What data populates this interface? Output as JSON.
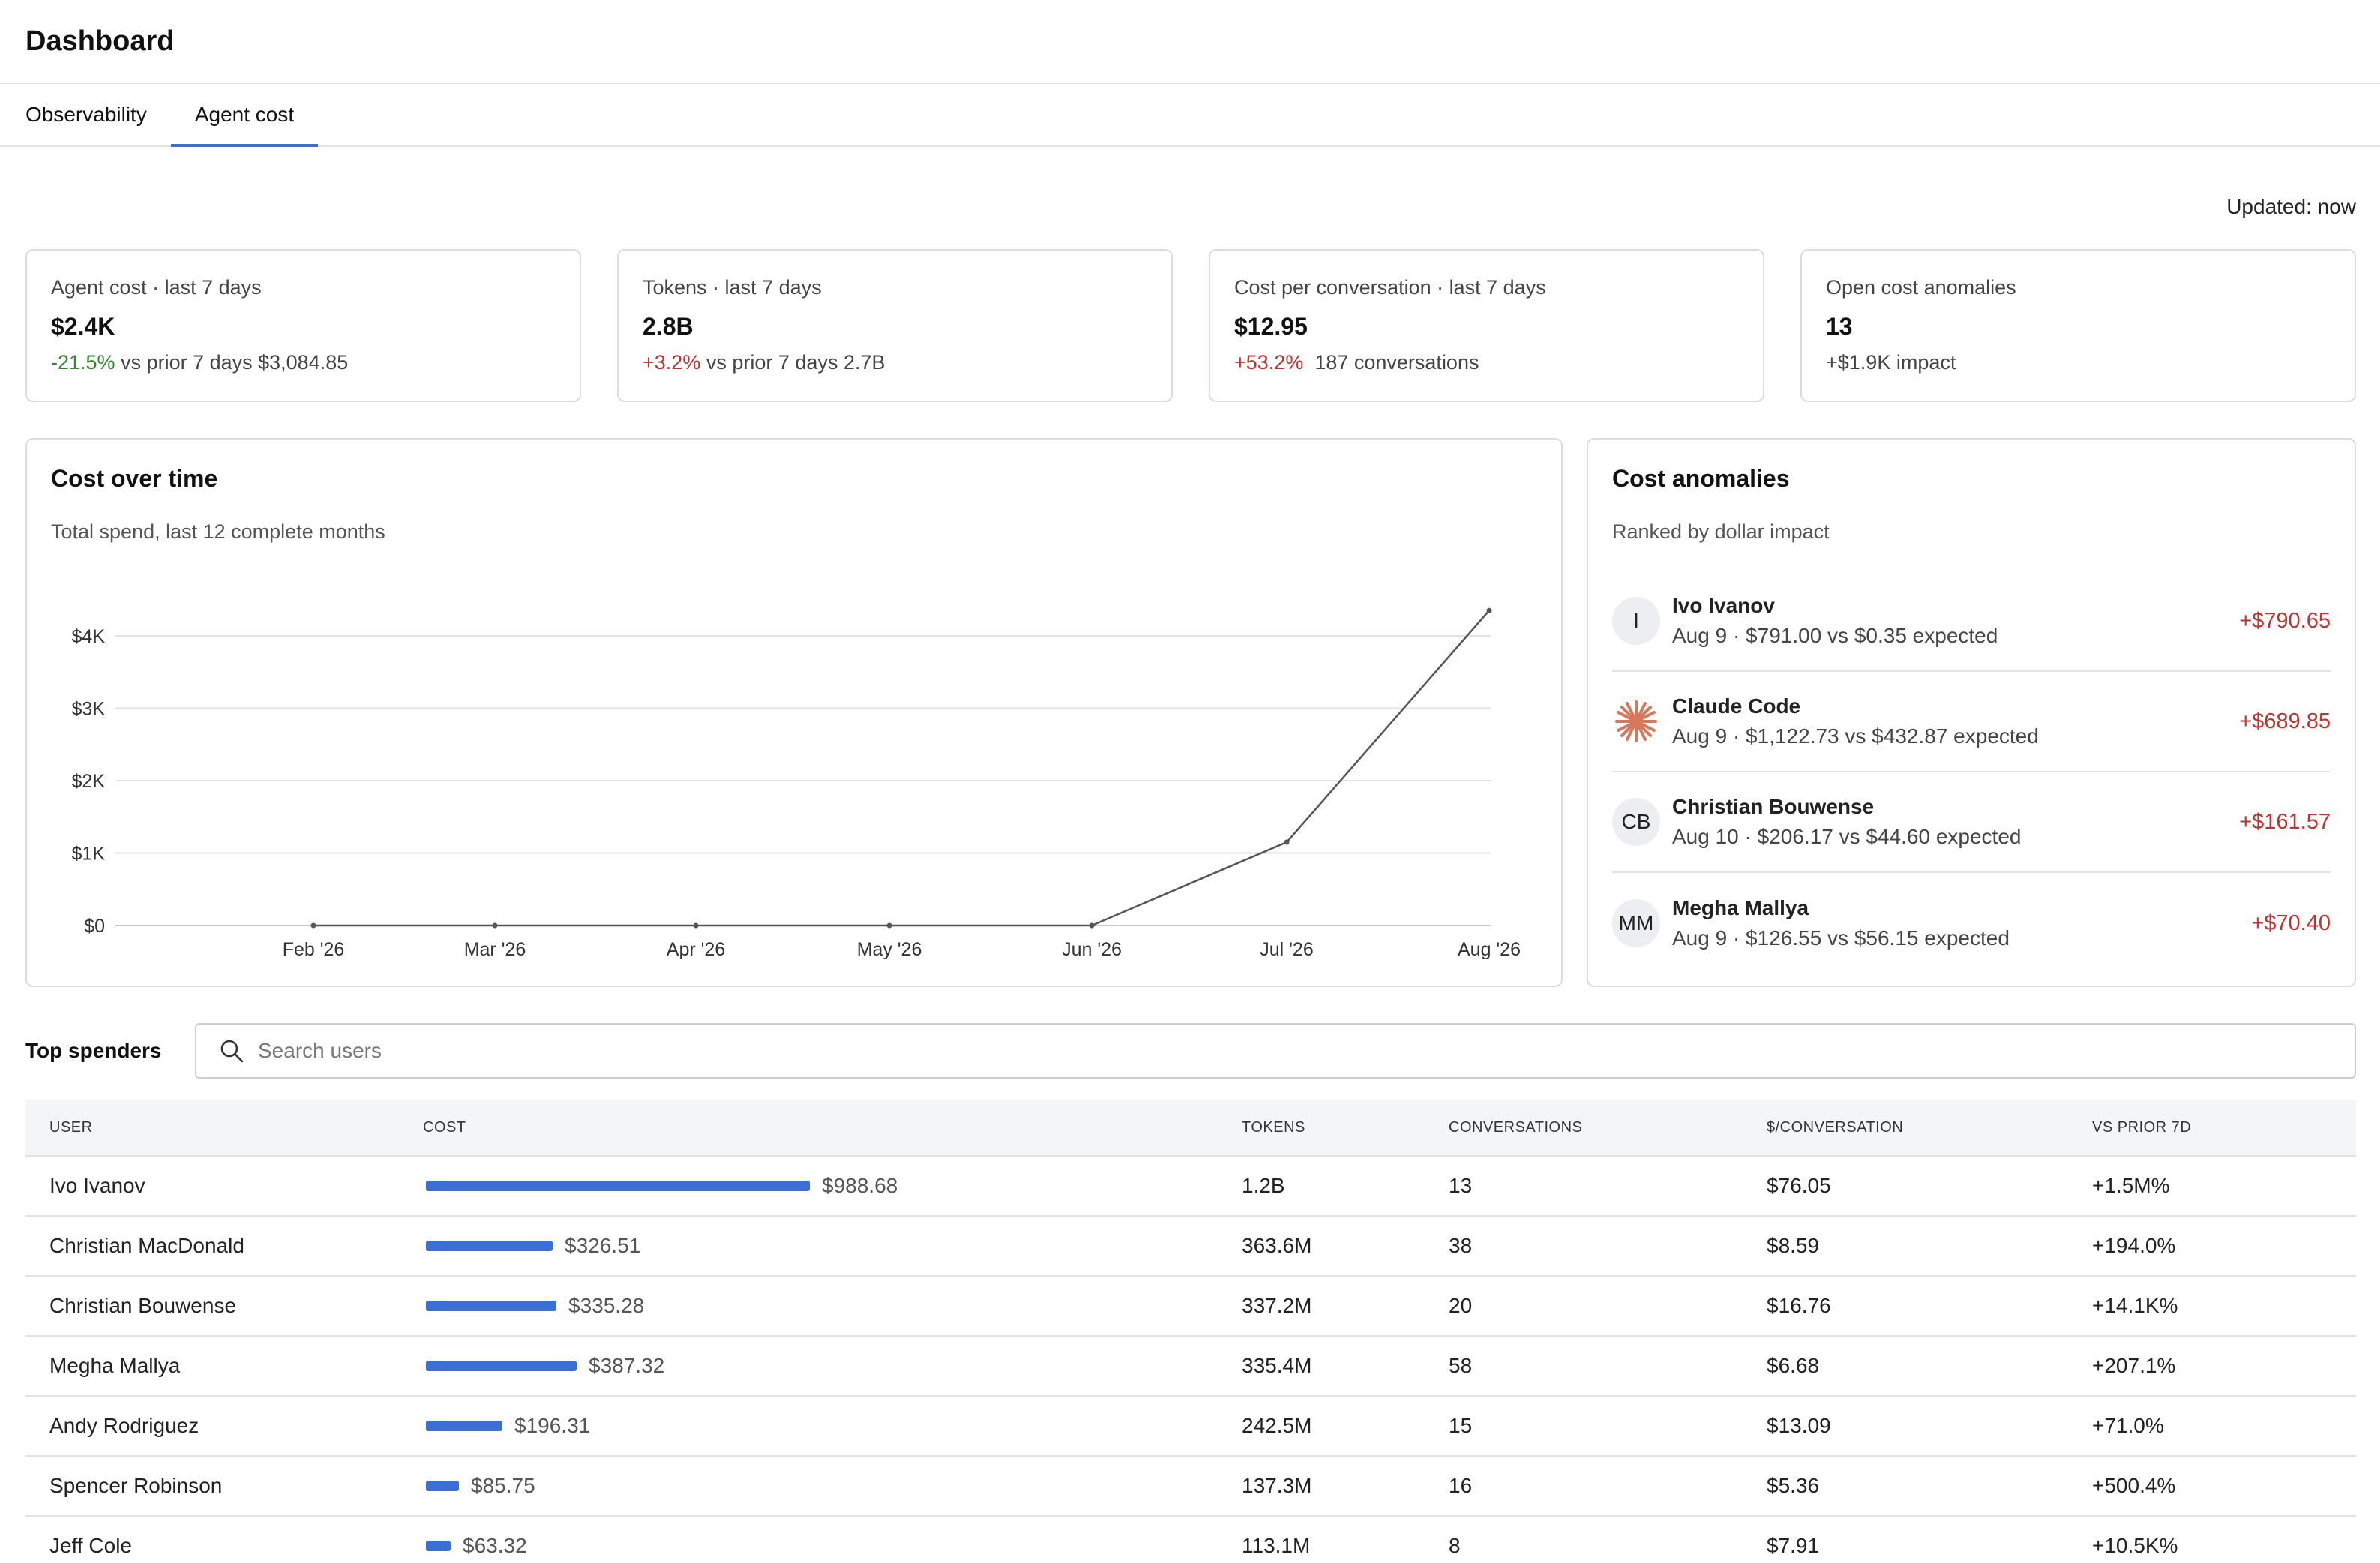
{
  "header": {
    "title": "Dashboard"
  },
  "tabs": [
    {
      "label": "Observability",
      "active": false
    },
    {
      "label": "Agent cost",
      "active": true
    }
  ],
  "updated": "Updated: now",
  "kpis": [
    {
      "label": "Agent cost · last 7 days",
      "value": "$2.4K",
      "delta": "-21.5%",
      "delta_tone": "positive",
      "sub": " vs prior 7 days $3,084.85"
    },
    {
      "label": "Tokens · last 7 days",
      "value": "2.8B",
      "delta": "+3.2%",
      "delta_tone": "negative",
      "sub": " vs prior 7 days 2.7B"
    },
    {
      "label": "Cost per conversation · last 7 days",
      "value": "$12.95",
      "delta": "+53.2%",
      "delta_tone": "negative",
      "sub": "  187 conversations"
    },
    {
      "label": "Open cost anomalies",
      "value": "13",
      "delta": "",
      "delta_tone": "none",
      "sub": "+$1.9K impact"
    }
  ],
  "cost_chart": {
    "title": "Cost over time",
    "subtitle": "Total spend, last 12 complete months"
  },
  "chart_data": {
    "type": "line",
    "title": "Cost over time",
    "subtitle": "Total spend, last 12 complete months",
    "x": [
      "Feb '26",
      "Mar '26",
      "Apr '26",
      "May '26",
      "Jun '26",
      "Jul '26",
      "Aug '26"
    ],
    "values": [
      0,
      0,
      0,
      0,
      0,
      1150,
      4350
    ],
    "y_ticks": [
      "$0",
      "$1K",
      "$2K",
      "$3K",
      "$4K"
    ],
    "y_tick_values": [
      0,
      1000,
      2000,
      3000,
      4000
    ],
    "ylim": [
      0,
      4000
    ],
    "grid": true,
    "line_color": "#555555"
  },
  "anomalies": {
    "title": "Cost anomalies",
    "subtitle": "Ranked by dollar impact",
    "items": [
      {
        "avatar": "I",
        "icon": "",
        "name": "Ivo Ivanov",
        "detail": "Aug 9 · $791.00 vs $0.35 expected",
        "impact": "+$790.65"
      },
      {
        "avatar": "",
        "icon": "claude-logo-icon",
        "name": "Claude Code",
        "detail": "Aug 9 · $1,122.73 vs $432.87 expected",
        "impact": "+$689.85"
      },
      {
        "avatar": "CB",
        "icon": "",
        "name": "Christian Bouwense",
        "detail": "Aug 10 · $206.17 vs $44.60 expected",
        "impact": "+$161.57"
      },
      {
        "avatar": "MM",
        "icon": "",
        "name": "Megha Mallya",
        "detail": "Aug 9 · $126.55 vs $56.15 expected",
        "impact": "+$70.40"
      }
    ]
  },
  "spenders": {
    "title": "Top spenders",
    "search_placeholder": "Search users",
    "columns": [
      "USER",
      "COST",
      "TOKENS",
      "CONVERSATIONS",
      "$/CONVERSATION",
      "VS PRIOR 7D"
    ],
    "rows": [
      {
        "user": "Ivo Ivanov",
        "cost": "$988.68",
        "cost_value": 988.68,
        "tokens": "1.2B",
        "conversations": "13",
        "per_conv": "$76.05",
        "vs_prior": "+1.5M%"
      },
      {
        "user": "Christian MacDonald",
        "cost": "$326.51",
        "cost_value": 326.51,
        "tokens": "363.6M",
        "conversations": "38",
        "per_conv": "$8.59",
        "vs_prior": "+194.0%"
      },
      {
        "user": "Christian Bouwense",
        "cost": "$335.28",
        "cost_value": 335.28,
        "tokens": "337.2M",
        "conversations": "20",
        "per_conv": "$16.76",
        "vs_prior": "+14.1K%"
      },
      {
        "user": "Megha Mallya",
        "cost": "$387.32",
        "cost_value": 387.32,
        "tokens": "335.4M",
        "conversations": "58",
        "per_conv": "$6.68",
        "vs_prior": "+207.1%"
      },
      {
        "user": "Andy Rodriguez",
        "cost": "$196.31",
        "cost_value": 196.31,
        "tokens": "242.5M",
        "conversations": "15",
        "per_conv": "$13.09",
        "vs_prior": "+71.0%"
      },
      {
        "user": "Spencer Robinson",
        "cost": "$85.75",
        "cost_value": 85.75,
        "tokens": "137.3M",
        "conversations": "16",
        "per_conv": "$5.36",
        "vs_prior": "+500.4%"
      },
      {
        "user": "Jeff Cole",
        "cost": "$63.32",
        "cost_value": 63.32,
        "tokens": "113.1M",
        "conversations": "8",
        "per_conv": "$7.91",
        "vs_prior": "+10.5K%"
      }
    ]
  },
  "colors": {
    "accent": "#3b6fd6",
    "positive": "#2f8a2f",
    "negative": "#c0332f",
    "claude": "#d9775a"
  }
}
